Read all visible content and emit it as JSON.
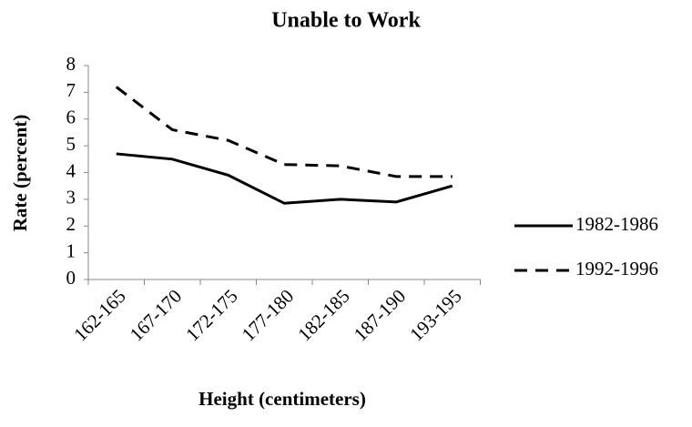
{
  "chart_data": {
    "type": "line",
    "title": "Unable to Work",
    "x_label": "Height (centimeters)",
    "y_label": "Rate (percent)",
    "categories": [
      "162-165",
      "167-170",
      "172-175",
      "177-180",
      "182-185",
      "187-190",
      "193-195"
    ],
    "series": [
      {
        "name": "1982-1986",
        "color": "#000000",
        "dash": "solid",
        "values": [
          4.7,
          4.5,
          3.9,
          2.85,
          3.0,
          2.9,
          3.5
        ]
      },
      {
        "name": "1992-1996",
        "color": "#000000",
        "dash": "dashed",
        "values": [
          7.2,
          5.6,
          5.2,
          4.3,
          4.25,
          3.85,
          3.85
        ]
      }
    ],
    "ylim": [
      0,
      8
    ],
    "yticks": [
      0,
      1,
      2,
      3,
      4,
      5,
      6,
      7,
      8
    ],
    "grid": false,
    "legend": "right"
  }
}
